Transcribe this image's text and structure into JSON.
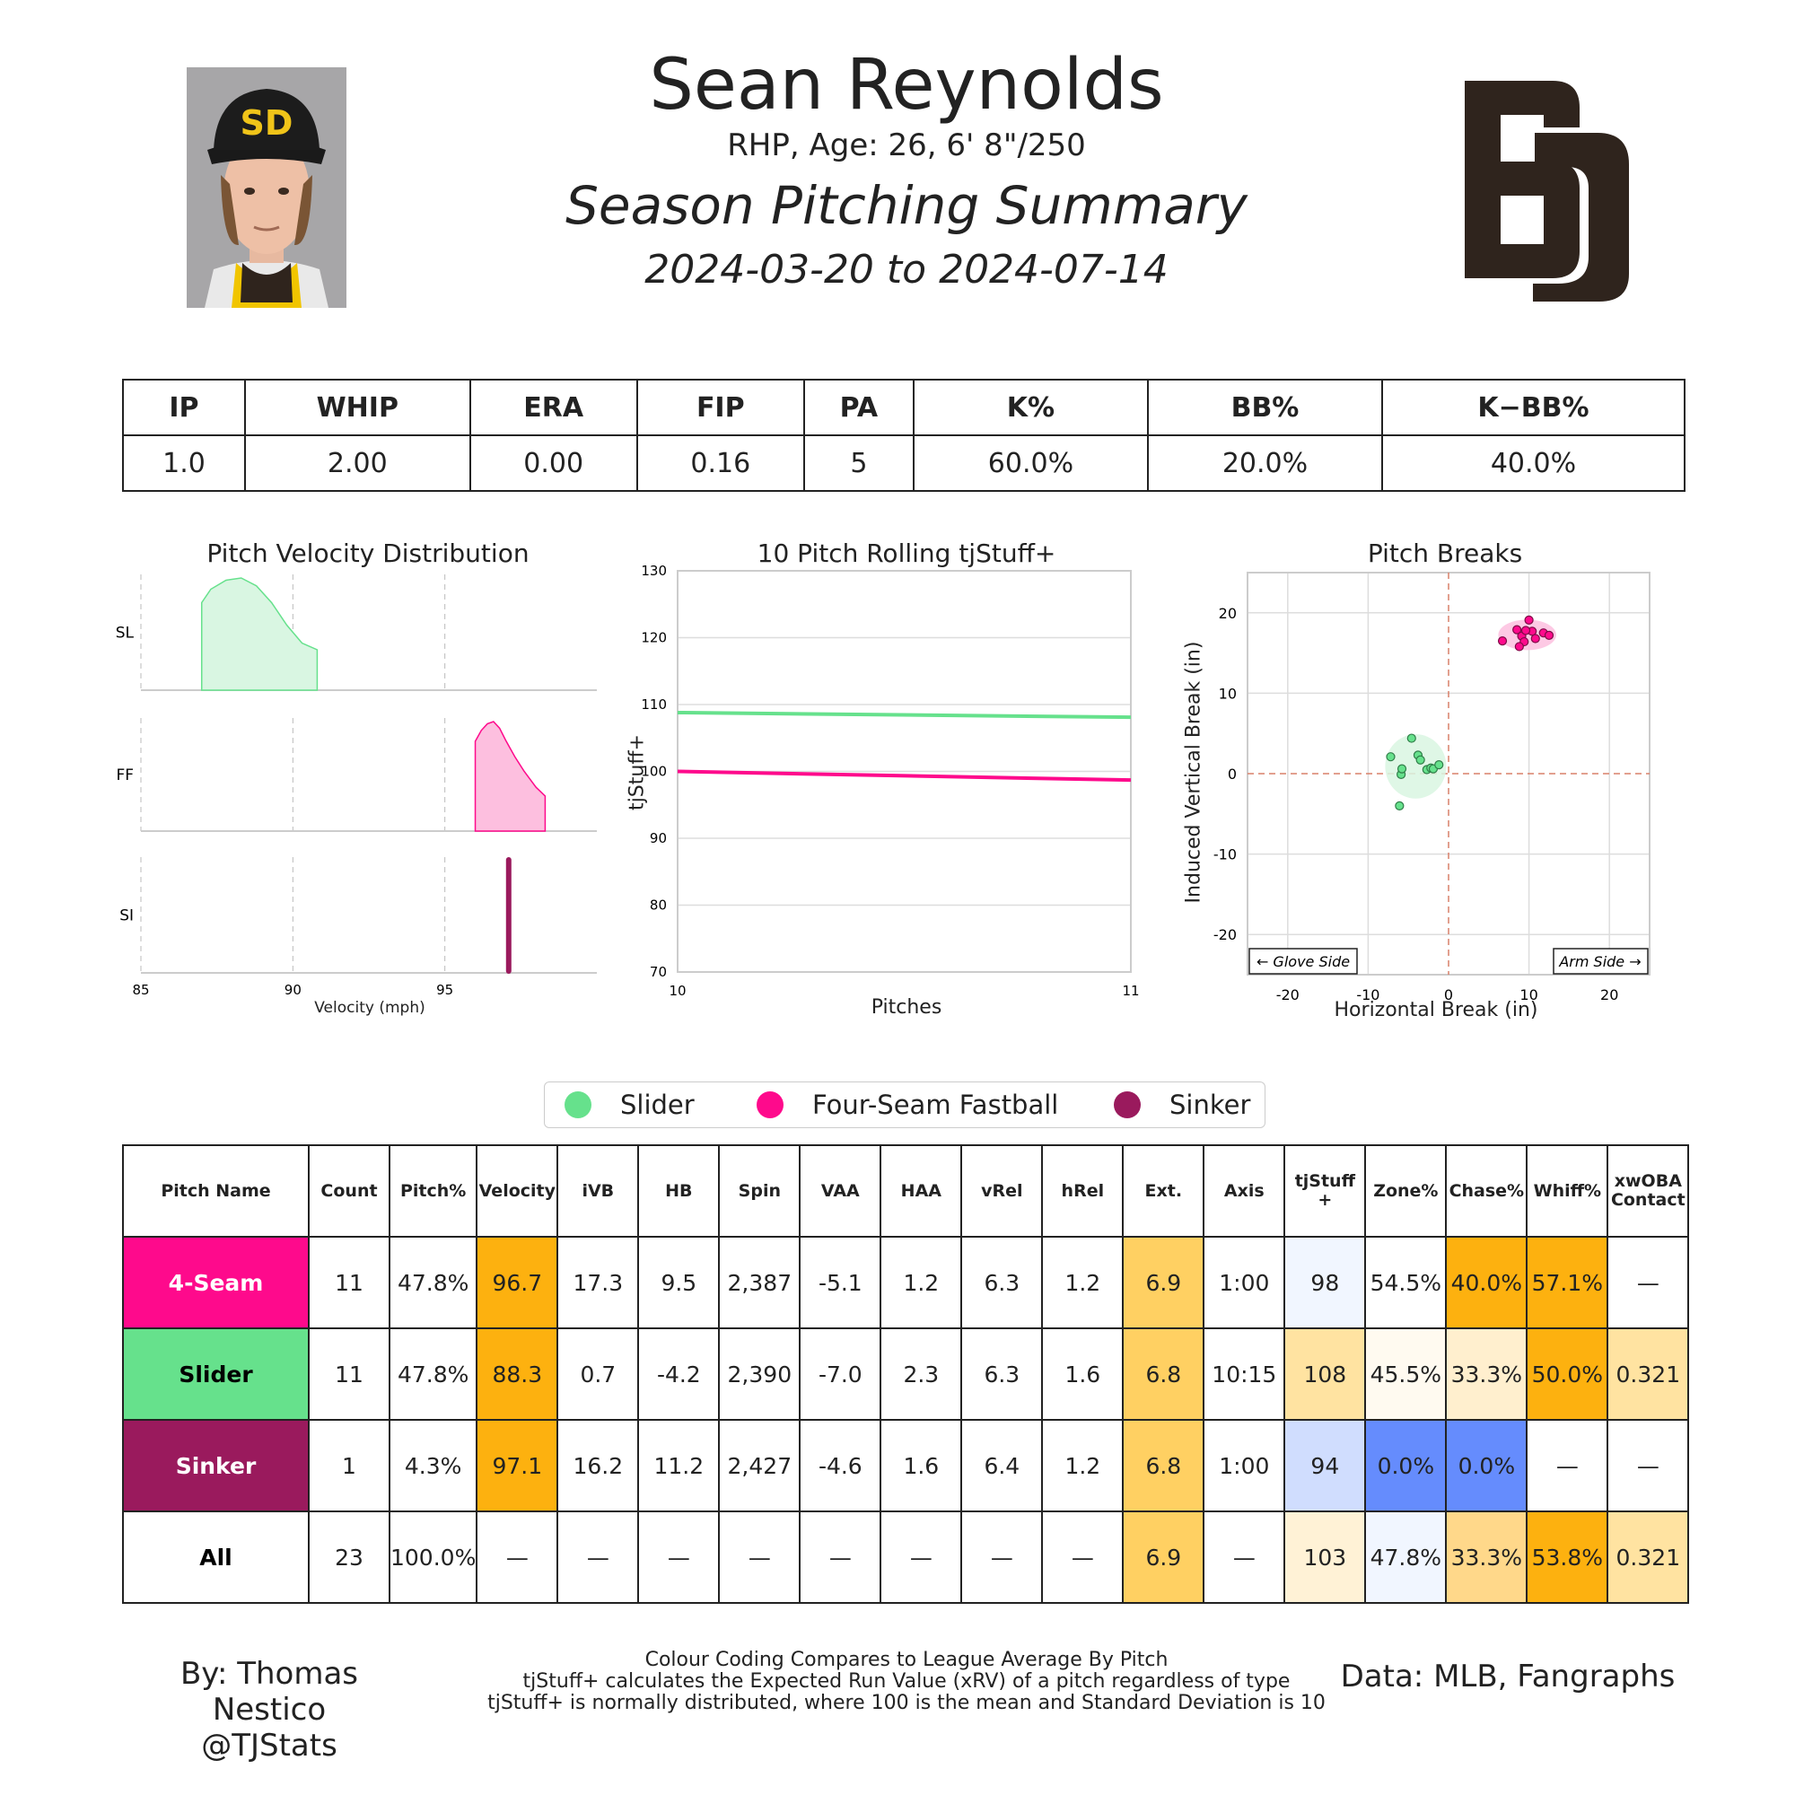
{
  "header": {
    "name": "Sean Reynolds",
    "bio": "RHP, Age: 26, 6' 8\"/250",
    "title": "Season Pitching Summary",
    "dates": "2024-03-20 to 2024-07-14"
  },
  "summary": {
    "headers": [
      "IP",
      "WHIP",
      "ERA",
      "FIP",
      "PA",
      "K%",
      "BB%",
      "K−BB%"
    ],
    "values": [
      "1.0",
      "2.00",
      "0.00",
      "0.16",
      "5",
      "60.0%",
      "20.0%",
      "40.0%"
    ]
  },
  "colors": {
    "slider": "#66e18c",
    "fourseam": "#fe0a8c",
    "sinker": "#9a1a5d",
    "slider_fill": "#d9f6e2",
    "fourseam_fill": "#fdbfdf"
  },
  "chart_data": [
    {
      "type": "area",
      "title": "Pitch Velocity Distribution",
      "xlabel": "Velocity (mph)",
      "xlim": [
        85,
        100
      ],
      "xticks": [
        "85",
        "90",
        "95"
      ],
      "series": [
        {
          "name": "SL",
          "x": [
            87.0,
            87.3,
            87.8,
            88.3,
            88.8,
            89.3,
            89.8,
            90.3,
            90.8
          ],
          "y": [
            0.78,
            0.9,
            0.98,
            1.0,
            0.93,
            0.78,
            0.58,
            0.42,
            0.36
          ]
        },
        {
          "name": "FF",
          "x": [
            96.0,
            96.2,
            96.4,
            96.6,
            96.8,
            97.0,
            97.3,
            97.6,
            98.0,
            98.3
          ],
          "y": [
            0.82,
            0.92,
            0.98,
            1.0,
            0.94,
            0.83,
            0.68,
            0.55,
            0.4,
            0.32
          ]
        },
        {
          "name": "SI",
          "x": [
            97.1
          ],
          "y": [
            1.0
          ]
        }
      ]
    },
    {
      "type": "line",
      "title": "10 Pitch Rolling tjStuff+",
      "xlabel": "Pitches",
      "ylabel": "tjStuff+",
      "xlim": [
        10,
        11
      ],
      "ylim": [
        70,
        130
      ],
      "xticks": [
        "10",
        "11"
      ],
      "yticks": [
        "70",
        "80",
        "90",
        "100",
        "110",
        "120",
        "130"
      ],
      "series": [
        {
          "name": "Slider",
          "x": [
            10,
            11
          ],
          "y": [
            108.8,
            108.1
          ]
        },
        {
          "name": "Four-Seam Fastball",
          "x": [
            10,
            11
          ],
          "y": [
            100.0,
            98.7
          ]
        }
      ]
    },
    {
      "type": "scatter",
      "title": "Pitch Breaks",
      "xlabel": "Horizontal Break (in)",
      "ylabel": "Induced Vertical Break (in)",
      "xlim": [
        -25,
        25
      ],
      "ylim": [
        -25,
        25
      ],
      "xticks": [
        "-20",
        "-10",
        "0",
        "10",
        "20"
      ],
      "yticks": [
        "-20",
        "-10",
        "0",
        "10",
        "20"
      ],
      "glove_label": "← Glove Side",
      "arm_label": "Arm Side →",
      "series": [
        {
          "name": "Slider",
          "x": [
            -7.2,
            -4.6,
            -3.8,
            -3.5,
            -2.7,
            -2.2,
            -1.9,
            -1.2,
            -5.9,
            -5.8,
            -6.1
          ],
          "y": [
            2.1,
            4.4,
            2.3,
            1.7,
            0.5,
            0.7,
            0.6,
            1.1,
            -0.1,
            0.6,
            -4.0
          ]
        },
        {
          "name": "Four-Seam Fastball",
          "x": [
            6.7,
            8.5,
            9.1,
            9.4,
            10.0,
            10.4,
            10.8,
            11.8,
            12.5,
            9.6,
            8.8
          ],
          "y": [
            16.5,
            17.9,
            17.1,
            16.4,
            19.1,
            17.7,
            16.8,
            17.5,
            17.2,
            17.8,
            15.8
          ]
        }
      ]
    }
  ],
  "legend": {
    "slider": "Slider",
    "fourseam": "Four-Seam Fastball",
    "sinker": "Sinker"
  },
  "pitch_table": {
    "headers": [
      "Pitch Name",
      "Count",
      "Pitch%",
      "Velocity",
      "iVB",
      "HB",
      "Spin",
      "VAA",
      "HAA",
      "vRel",
      "hRel",
      "Ext.",
      "Axis",
      "tjStuff +",
      "Zone%",
      "Chase%",
      "Whiff%",
      "xwOBA\nContact"
    ],
    "rows": [
      {
        "name": "4-Seam",
        "cells": [
          "11",
          "47.8%",
          "96.7",
          "17.3",
          "9.5",
          "2,387",
          "-5.1",
          "1.2",
          "6.3",
          "1.2",
          "6.9",
          "1:00",
          "98",
          "54.5%",
          "40.0%",
          "57.1%",
          "—"
        ]
      },
      {
        "name": "Slider",
        "cells": [
          "11",
          "47.8%",
          "88.3",
          "0.7",
          "-4.2",
          "2,390",
          "-7.0",
          "2.3",
          "6.3",
          "1.6",
          "6.8",
          "10:15",
          "108",
          "45.5%",
          "33.3%",
          "50.0%",
          "0.321"
        ]
      },
      {
        "name": "Sinker",
        "cells": [
          "1",
          "4.3%",
          "97.1",
          "16.2",
          "11.2",
          "2,427",
          "-4.6",
          "1.6",
          "6.4",
          "1.2",
          "6.8",
          "1:00",
          "94",
          "0.0%",
          "0.0%",
          "—",
          "—"
        ]
      },
      {
        "name": "All",
        "cells": [
          "23",
          "100.0%",
          "—",
          "—",
          "—",
          "—",
          "—",
          "—",
          "—",
          "—",
          "6.9",
          "—",
          "103",
          "47.8%",
          "33.3%",
          "53.8%",
          "0.321"
        ]
      }
    ]
  },
  "footer": {
    "author": "By: Thomas Nestico",
    "handle": "@TJStats",
    "note1": "Colour Coding Compares to League Average By Pitch",
    "note2": "tjStuff+ calculates the Expected Run Value (xRV) of a pitch regardless of type",
    "note3": "tjStuff+ is normally distributed, where 100 is the mean and Standard Deviation is 10",
    "source": "Data: MLB, Fangraphs"
  }
}
